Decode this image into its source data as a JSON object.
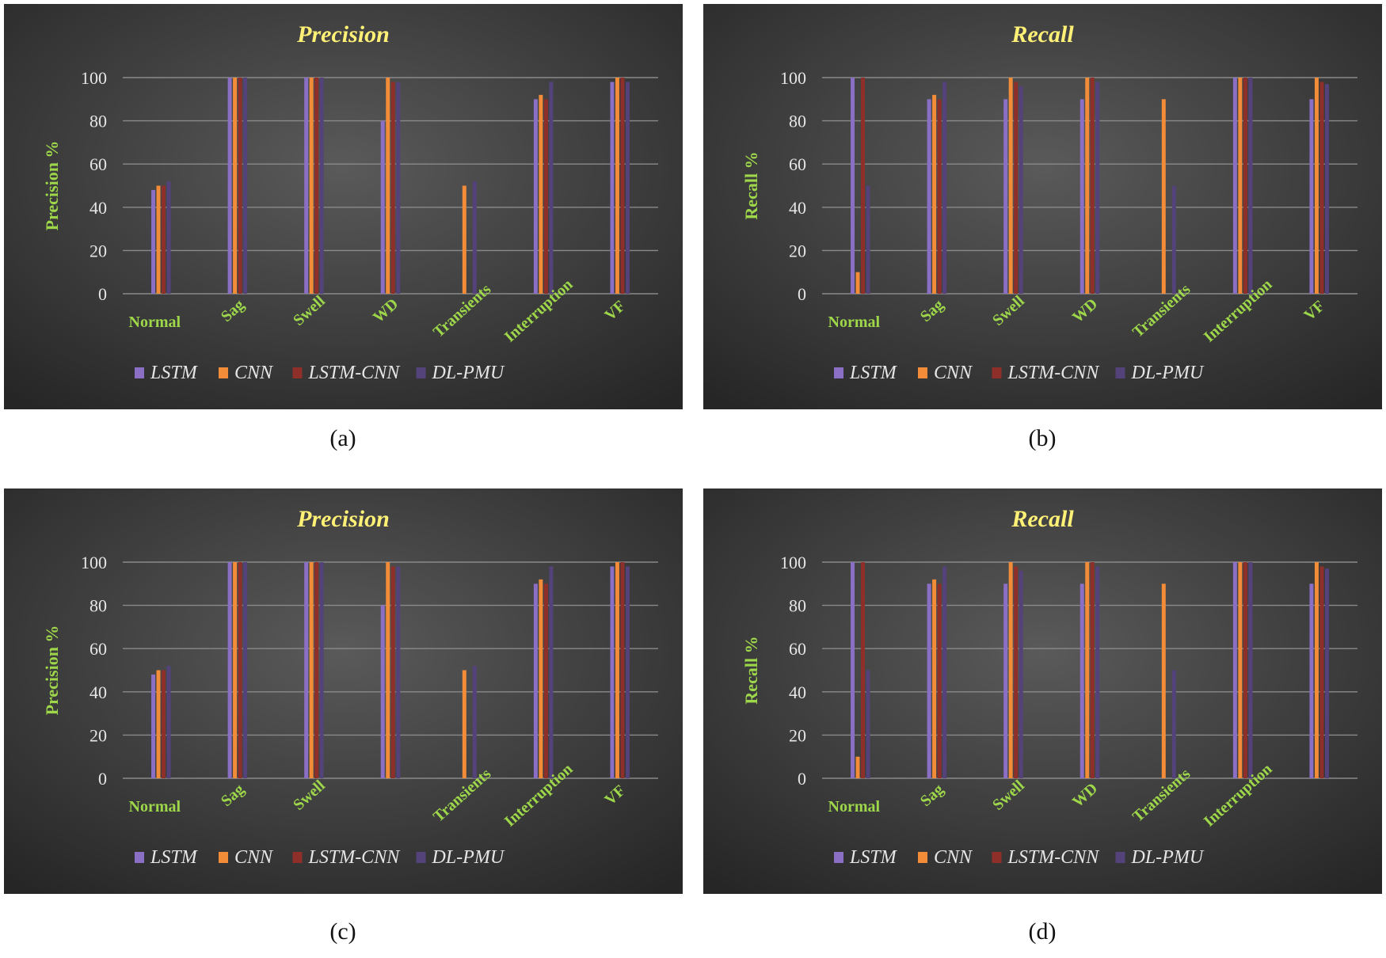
{
  "colors": {
    "LSTM": "#8a6fc4",
    "CNN": "#f28c38",
    "LSTM-CNN": "#8f2f2a",
    "DL-PMU": "#54437a",
    "title": "#fff176",
    "axis_label": "#9ed84a",
    "tick": "#e6e6e6",
    "grid": "#8a8a8a"
  },
  "captions": [
    "(a)",
    "(b)",
    "(c)",
    "(d)"
  ],
  "chart_data": [
    {
      "type": "bar",
      "title": "Precision",
      "ylabel": "Precision %",
      "xlabel": "",
      "ylim": [
        0,
        100
      ],
      "yticks": [
        0,
        20,
        40,
        60,
        80,
        100
      ],
      "grid": true,
      "legend": "bottom",
      "categories": [
        "Normal",
        "Sag",
        "Swell",
        "WD",
        "Transients",
        "Interruption",
        "VF"
      ],
      "series": [
        {
          "name": "LSTM",
          "values": [
            48,
            100,
            100,
            80,
            0,
            90,
            98
          ]
        },
        {
          "name": "CNN",
          "values": [
            50,
            100,
            100,
            100,
            50,
            92,
            100
          ]
        },
        {
          "name": "LSTM-CNN",
          "values": [
            50,
            100,
            100,
            98,
            0,
            90,
            100
          ]
        },
        {
          "name": "DL-PMU",
          "values": [
            52,
            100,
            100,
            98,
            52,
            98,
            98
          ]
        }
      ]
    },
    {
      "type": "bar",
      "title": "Recall",
      "ylabel": "Recall %",
      "xlabel": "",
      "ylim": [
        0,
        100
      ],
      "yticks": [
        0,
        20,
        40,
        60,
        80,
        100
      ],
      "grid": true,
      "legend": "bottom",
      "categories": [
        "Normal",
        "Sag",
        "Swell",
        "WD",
        "Transients",
        "Interruption",
        "VF"
      ],
      "series": [
        {
          "name": "LSTM",
          "values": [
            100,
            90,
            90,
            90,
            0,
            100,
            90
          ]
        },
        {
          "name": "CNN",
          "values": [
            10,
            92,
            100,
            100,
            90,
            100,
            100
          ]
        },
        {
          "name": "LSTM-CNN",
          "values": [
            100,
            90,
            98,
            100,
            0,
            100,
            98
          ]
        },
        {
          "name": "DL-PMU",
          "values": [
            50,
            98,
            96,
            98,
            50,
            100,
            97
          ]
        }
      ]
    },
    {
      "type": "bar",
      "title": "Precision",
      "ylabel": "Precision %",
      "xlabel": "",
      "ylim": [
        0,
        100
      ],
      "yticks": [
        0,
        20,
        40,
        60,
        80,
        100
      ],
      "grid": true,
      "legend": "bottom",
      "categories": [
        "Normal",
        "Sag",
        "Swell",
        "",
        "Transients",
        "Interruption",
        "VF"
      ],
      "series": [
        {
          "name": "LSTM",
          "values": [
            48,
            100,
            100,
            80,
            0,
            90,
            98
          ]
        },
        {
          "name": "CNN",
          "values": [
            50,
            100,
            100,
            100,
            50,
            92,
            100
          ]
        },
        {
          "name": "LSTM-CNN",
          "values": [
            50,
            100,
            100,
            98,
            0,
            90,
            100
          ]
        },
        {
          "name": "DL-PMU",
          "values": [
            52,
            100,
            100,
            98,
            52,
            98,
            98
          ]
        }
      ]
    },
    {
      "type": "bar",
      "title": "Recall",
      "ylabel": "Recall %",
      "xlabel": "",
      "ylim": [
        0,
        100
      ],
      "yticks": [
        0,
        20,
        40,
        60,
        80,
        100
      ],
      "grid": true,
      "legend": "bottom",
      "categories": [
        "Normal",
        "Sag",
        "Swell",
        "WD",
        "Transients",
        "Interruption",
        ""
      ],
      "series": [
        {
          "name": "LSTM",
          "values": [
            100,
            90,
            90,
            90,
            0,
            100,
            90
          ]
        },
        {
          "name": "CNN",
          "values": [
            10,
            92,
            100,
            100,
            90,
            100,
            100
          ]
        },
        {
          "name": "LSTM-CNN",
          "values": [
            100,
            90,
            98,
            100,
            0,
            100,
            98
          ]
        },
        {
          "name": "DL-PMU",
          "values": [
            50,
            98,
            96,
            98,
            50,
            100,
            97
          ]
        }
      ]
    }
  ]
}
